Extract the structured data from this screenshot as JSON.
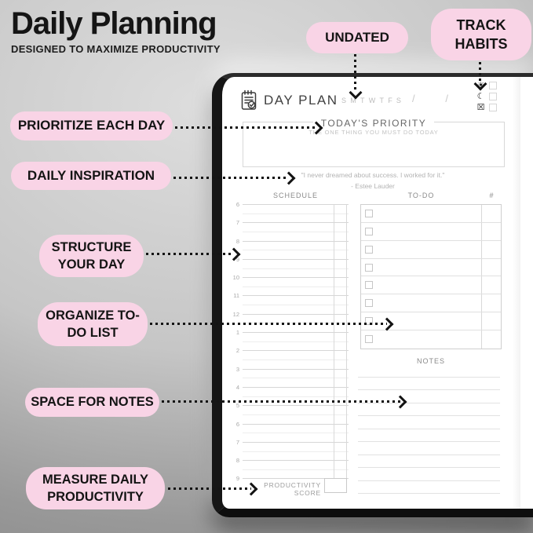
{
  "headline": {
    "title": "Daily Planning",
    "subtitle": "DESIGNED TO MAXIMIZE PRODUCTIVITY"
  },
  "callouts": [
    {
      "id": "undated",
      "label": "UNDATED"
    },
    {
      "id": "track-habits",
      "label": "TRACK HABITS"
    },
    {
      "id": "prioritize-each-day",
      "label": "PRIORITIZE EACH DAY"
    },
    {
      "id": "daily-inspiration",
      "label": "DAILY INSPIRATION"
    },
    {
      "id": "structure-your-day",
      "label": "STRUCTURE YOUR DAY"
    },
    {
      "id": "organize-todo-list",
      "label": "ORGANIZE TO-DO LIST"
    },
    {
      "id": "space-for-notes",
      "label": "SPACE FOR NOTES"
    },
    {
      "id": "measure-daily-productivity",
      "label": "MEASURE DAILY PRODUCTIVITY"
    }
  ],
  "planner": {
    "brand": "DAY PLAN",
    "weekdays": [
      "S",
      "M",
      "T",
      "W",
      "T",
      "F",
      "S"
    ],
    "date_separators": [
      "/",
      "/"
    ],
    "habits": [
      {
        "icon": "sunrise-icon",
        "glyph": "☀"
      },
      {
        "icon": "moon-icon",
        "glyph": "☾"
      },
      {
        "icon": "crossed-box-icon",
        "glyph": "☒"
      }
    ],
    "priority": {
      "title": "TODAY'S PRIORITY",
      "subtitle": "THE ONE THING YOU MUST DO TODAY"
    },
    "quote_line1": "\"I never dreamed about success. I worked for it.\"",
    "quote_line2": "- Estee Lauder",
    "schedule_header": "SCHEDULE",
    "schedule_hours": [
      "6",
      "7",
      "8",
      "9",
      "10",
      "11",
      "12",
      "1",
      "2",
      "3",
      "4",
      "5",
      "6",
      "7",
      "8",
      "9"
    ],
    "todo_header": "TO-DO",
    "todo_count_header": "#",
    "todo_row_count": 8,
    "notes_header": "NOTES",
    "notes_line_count": 10,
    "productivity_label": "PRODUCTIVITY SCORE"
  },
  "colors": {
    "bubble_pink": "#f9d4e6",
    "ink": "#141414",
    "page_white": "#ffffff"
  }
}
